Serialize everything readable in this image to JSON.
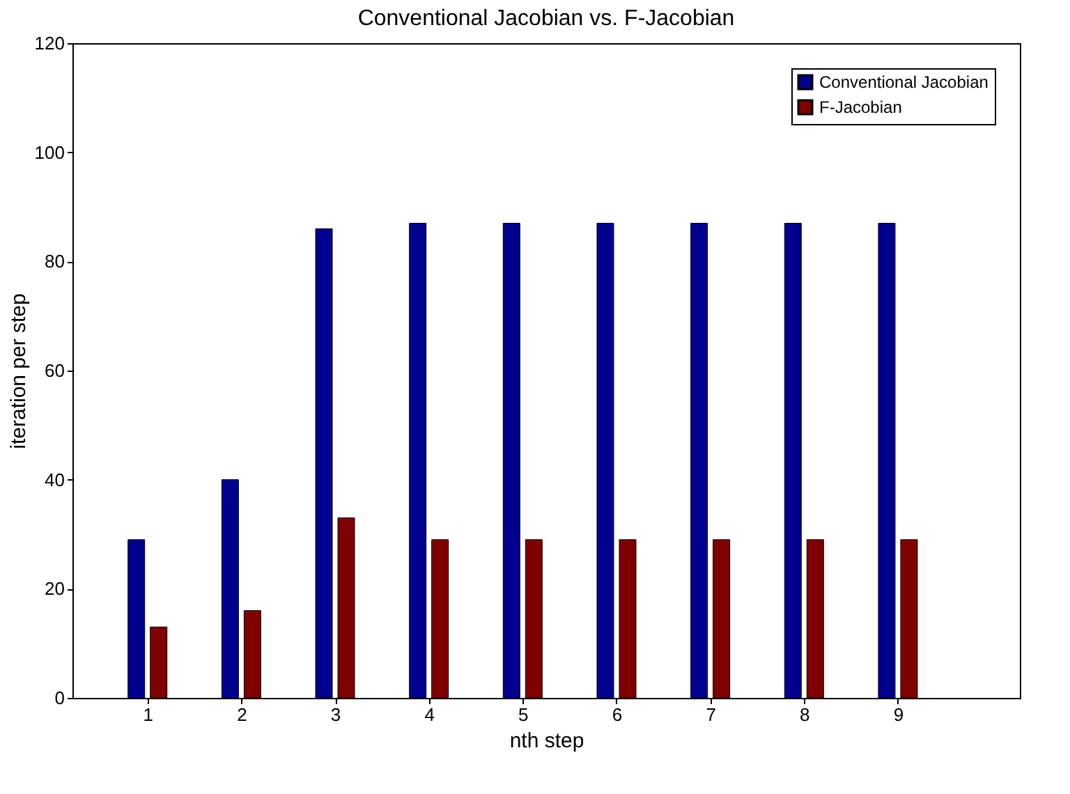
{
  "chart_data": {
    "type": "bar",
    "title": "Conventional Jacobian vs. F-Jacobian",
    "xlabel": "nth step",
    "ylabel": "iteration per step",
    "x": [
      1,
      2,
      3,
      4,
      5,
      6,
      7,
      8,
      9
    ],
    "series": [
      {
        "name": "Conventional Jacobian",
        "color": "#00008f",
        "values": [
          29,
          40,
          86,
          87,
          87,
          87,
          87,
          87,
          87
        ]
      },
      {
        "name": "F-Jacobian",
        "color": "#800000",
        "values": [
          13,
          16,
          33,
          29,
          29,
          29,
          29,
          29,
          29
        ]
      }
    ],
    "xlim": [
      0.2,
      10.3
    ],
    "xticks": [
      1,
      2,
      3,
      4,
      5,
      6,
      7,
      8,
      9
    ],
    "ylim": [
      0,
      120
    ],
    "yticks": [
      0,
      20,
      40,
      60,
      80,
      100,
      120
    ],
    "grid": false,
    "legend": "top right"
  }
}
